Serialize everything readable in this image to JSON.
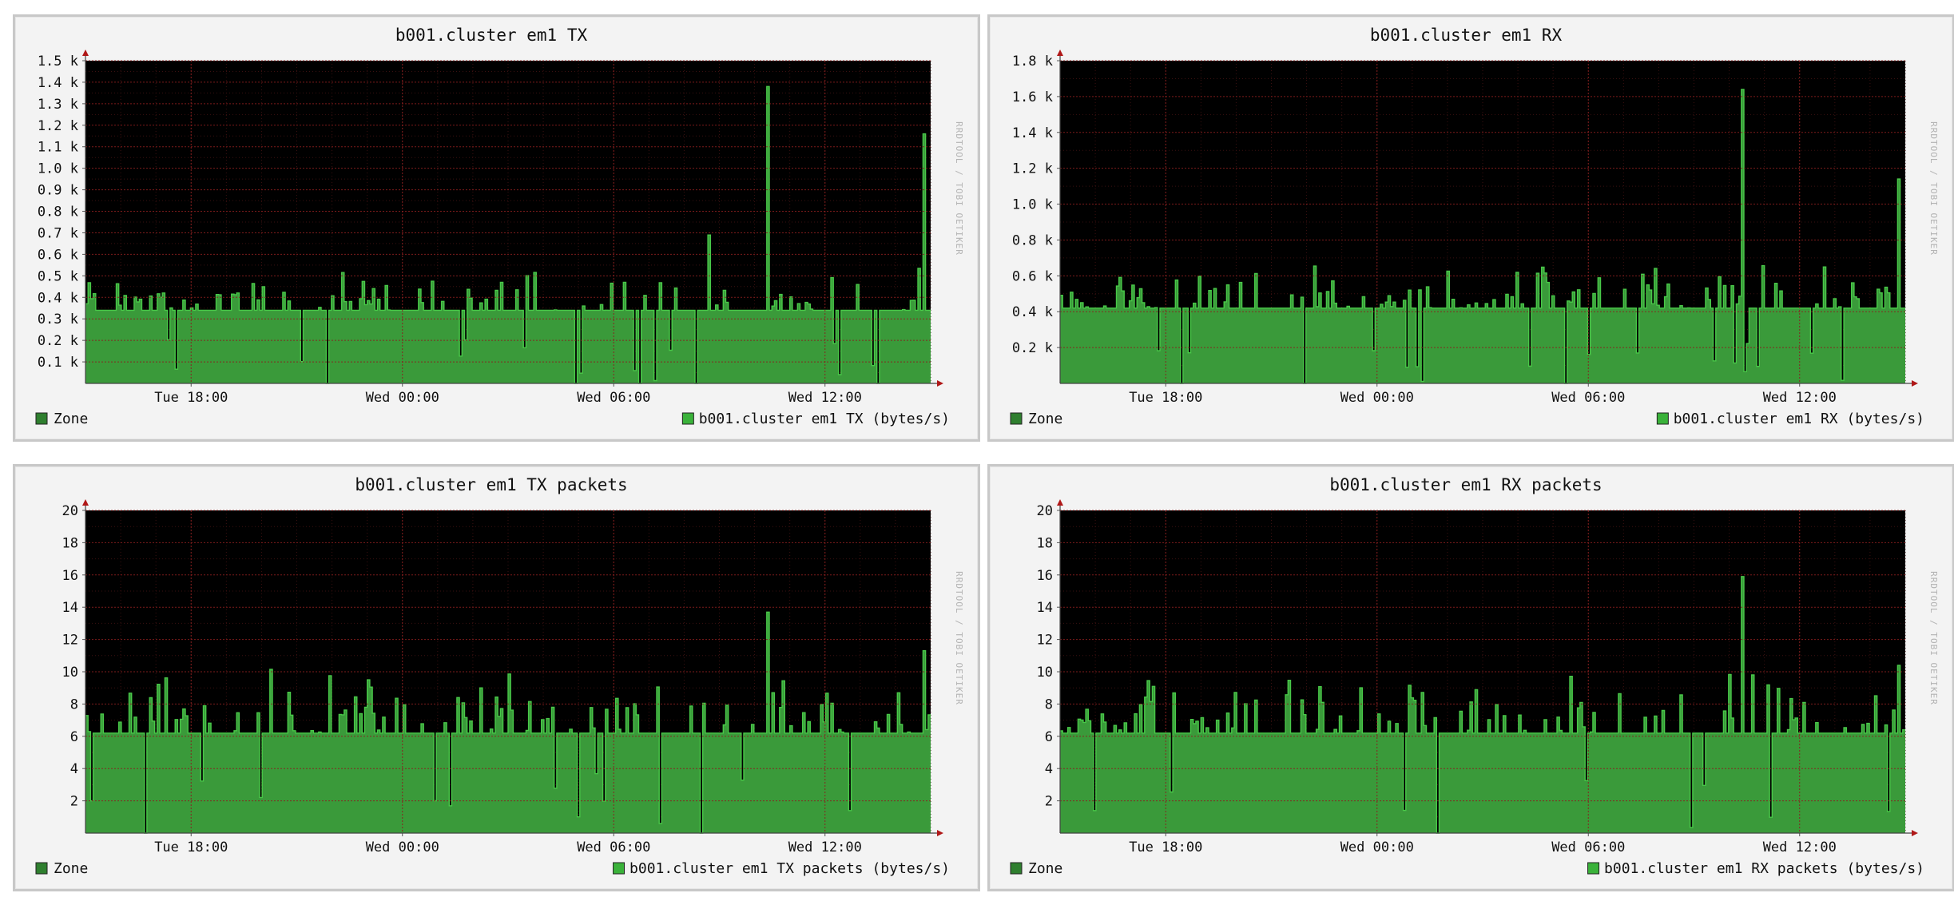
{
  "colors": {
    "panel_bg": "#f3f3f3",
    "plot_bg": "#000000",
    "grid": "#8a1f1f",
    "area": "#3a9a3a",
    "line": "#48c848",
    "zone_legend": "#2f7f2f",
    "series_legend": "#3ab23a",
    "text": "#111111",
    "axis_arrow": "#b01818",
    "watermark": "#b4b4b4"
  },
  "watermark": "RRDTOOL / TOBI OETIKER",
  "chart_data": [
    {
      "id": "tx",
      "type": "area",
      "title": "b001.cluster em1 TX",
      "xlabel": "",
      "ylabel": "",
      "x_range": [
        "Tue 15:00",
        "Wed 15:00"
      ],
      "x_ticks": [
        "Tue 18:00",
        "Wed 00:00",
        "Wed 06:00",
        "Wed 12:00"
      ],
      "ylim": [
        0,
        1500
      ],
      "y_ticks": [
        100,
        200,
        300,
        400,
        500,
        600,
        700,
        800,
        900,
        1000,
        1100,
        1200,
        1300,
        1400,
        1500
      ],
      "y_tick_labels": [
        "0.1 k",
        "0.2 k",
        "0.3 k",
        "0.4 k",
        "0.5 k",
        "0.6 k",
        "0.7 k",
        "0.8 k",
        "0.9 k",
        "1.0 k",
        "1.1 k",
        "1.2 k",
        "1.3 k",
        "1.4 k",
        "1.5 k"
      ],
      "grid": true,
      "legend": [
        "Zone",
        "b001.cluster em1 TX (bytes/s)"
      ],
      "series": [
        {
          "name": "b001.cluster em1 TX (bytes/s)",
          "baseline": 340,
          "noise": 200,
          "seed": 11,
          "spikes": [
            [
              "Wed 08:45",
              690
            ],
            [
              "Wed 10:25",
              1380
            ],
            [
              "Wed 14:50",
              1160
            ]
          ]
        }
      ]
    },
    {
      "id": "rx",
      "type": "area",
      "title": "b001.cluster em1 RX",
      "xlabel": "",
      "ylabel": "",
      "x_range": [
        "Tue 15:00",
        "Wed 15:00"
      ],
      "x_ticks": [
        "Tue 18:00",
        "Wed 00:00",
        "Wed 06:00",
        "Wed 12:00"
      ],
      "ylim": [
        0,
        1800
      ],
      "y_ticks": [
        200,
        400,
        600,
        800,
        1000,
        1200,
        1400,
        1600,
        1800
      ],
      "y_tick_labels": [
        "0.2 k",
        "0.4 k",
        "0.6 k",
        "0.8 k",
        "1.0 k",
        "1.2 k",
        "1.4 k",
        "1.6 k",
        "1.8 k"
      ],
      "grid": true,
      "legend": [
        "Zone",
        "b001.cluster em1 RX (bytes/s)"
      ],
      "series": [
        {
          "name": "b001.cluster em1 RX (bytes/s)",
          "baseline": 420,
          "noise": 280,
          "seed": 23,
          "spikes": [
            [
              "Wed 10:25",
              1640
            ],
            [
              "Wed 14:50",
              1140
            ]
          ]
        }
      ]
    },
    {
      "id": "txp",
      "type": "area",
      "title": "b001.cluster em1 TX packets",
      "xlabel": "",
      "ylabel": "",
      "x_range": [
        "Tue 15:00",
        "Wed 15:00"
      ],
      "x_ticks": [
        "Tue 18:00",
        "Wed 00:00",
        "Wed 06:00",
        "Wed 12:00"
      ],
      "ylim": [
        0,
        20
      ],
      "y_ticks": [
        2,
        4,
        6,
        8,
        10,
        12,
        14,
        16,
        18,
        20
      ],
      "y_tick_labels": [
        "2",
        "4",
        "6",
        "8",
        "10",
        "12",
        "14",
        "16",
        "18",
        "20"
      ],
      "grid": true,
      "legend": [
        "Zone",
        "b001.cluster em1 TX packets (bytes/s)"
      ],
      "series": [
        {
          "name": "b001.cluster em1 TX packets (bytes/s)",
          "baseline": 6.2,
          "noise": 4.2,
          "seed": 37,
          "spikes": [
            [
              "Wed 10:25",
              13.7
            ],
            [
              "Wed 14:50",
              11.3
            ]
          ]
        }
      ]
    },
    {
      "id": "rxp",
      "type": "area",
      "title": "b001.cluster em1 RX packets",
      "xlabel": "",
      "ylabel": "",
      "x_range": [
        "Tue 15:00",
        "Wed 15:00"
      ],
      "x_ticks": [
        "Tue 18:00",
        "Wed 00:00",
        "Wed 06:00",
        "Wed 12:00"
      ],
      "ylim": [
        0,
        20
      ],
      "y_ticks": [
        2,
        4,
        6,
        8,
        10,
        12,
        14,
        16,
        18,
        20
      ],
      "y_tick_labels": [
        "2",
        "4",
        "6",
        "8",
        "10",
        "12",
        "14",
        "16",
        "18",
        "20"
      ],
      "grid": true,
      "legend": [
        "Zone",
        "b001.cluster em1 RX packets (bytes/s)"
      ],
      "series": [
        {
          "name": "b001.cluster em1 RX packets (bytes/s)",
          "baseline": 6.2,
          "noise": 4.2,
          "seed": 53,
          "spikes": [
            [
              "Wed 10:25",
              15.9
            ],
            [
              "Wed 14:50",
              10.4
            ]
          ]
        }
      ]
    }
  ]
}
